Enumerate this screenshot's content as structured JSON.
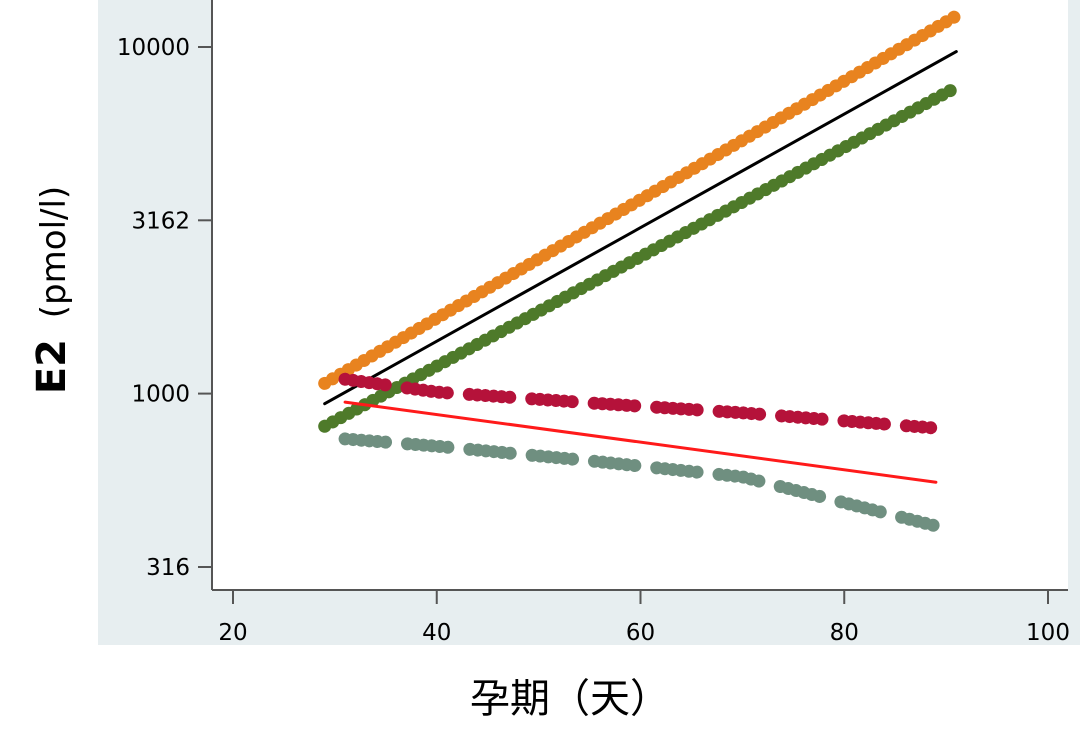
{
  "chart_data": {
    "type": "line",
    "xlabel": "孕期（天）",
    "ylabel_bold": "E2",
    "ylabel_unit": "(pmol/l)",
    "xlim": [
      20,
      100
    ],
    "xticks": [
      "20",
      "40",
      "60",
      "80",
      "100"
    ],
    "y_scale": "log",
    "ylim": [
      280,
      12500
    ],
    "yticks": [
      "10000",
      "3162",
      "1000",
      "316"
    ],
    "grid": false,
    "legend": "none",
    "colors": {
      "plot_background": "#ffffff",
      "outer_background": "#e7eef0",
      "orange": "#e8831f",
      "black": "#000000",
      "green": "#4e7a2a",
      "crimson": "#b5123a",
      "red": "#ff1a1a",
      "gray_green": "#6f8f80"
    },
    "series": [
      {
        "color": "orange",
        "style": "dotted-thick",
        "x": [
          29,
          91
        ],
        "y": [
          1070,
          12300
        ]
      },
      {
        "color": "black",
        "style": "solid",
        "x": [
          29,
          91
        ],
        "y": [
          935,
          9700
        ]
      },
      {
        "color": "green",
        "style": "dotted-thick",
        "x": [
          29,
          91
        ],
        "y": [
          805,
          7650
        ]
      },
      {
        "color": "crimson",
        "style": "dashed-dots",
        "x": [
          31,
          40,
          55,
          70,
          89
        ],
        "y": [
          1100,
          1010,
          940,
          880,
          795
        ]
      },
      {
        "color": "red",
        "style": "solid",
        "x": [
          31,
          89
        ],
        "y": [
          945,
          555
        ]
      },
      {
        "color": "gray_green",
        "style": "dashed-dots",
        "x": [
          31,
          40,
          55,
          70,
          89
        ],
        "y": [
          740,
          705,
          640,
          575,
          415
        ]
      }
    ]
  }
}
